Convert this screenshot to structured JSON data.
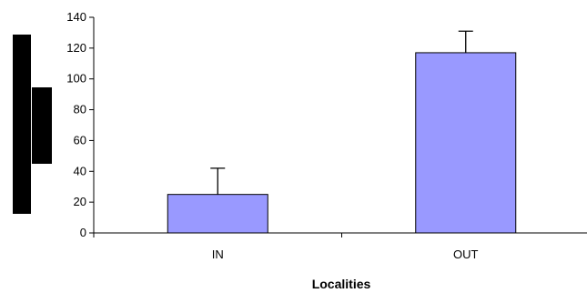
{
  "chart_data": {
    "type": "bar",
    "title": "",
    "xlabel": "Localities",
    "ylabel": "",
    "categories": [
      "IN",
      "OUT"
    ],
    "series": [
      {
        "values": [
          25,
          117
        ],
        "error_upper": [
          42,
          131
        ],
        "color": "#9999ff"
      }
    ],
    "ylim": [
      0,
      140
    ],
    "yticks": [
      "0",
      "20",
      "40",
      "60",
      "80",
      "100",
      "120",
      "140"
    ],
    "grid": false,
    "legend": "none"
  },
  "colors": {
    "bar_fill": "#9999ff",
    "bar_stroke": "#000000",
    "axis": "#000000",
    "redaction": "#000000"
  }
}
